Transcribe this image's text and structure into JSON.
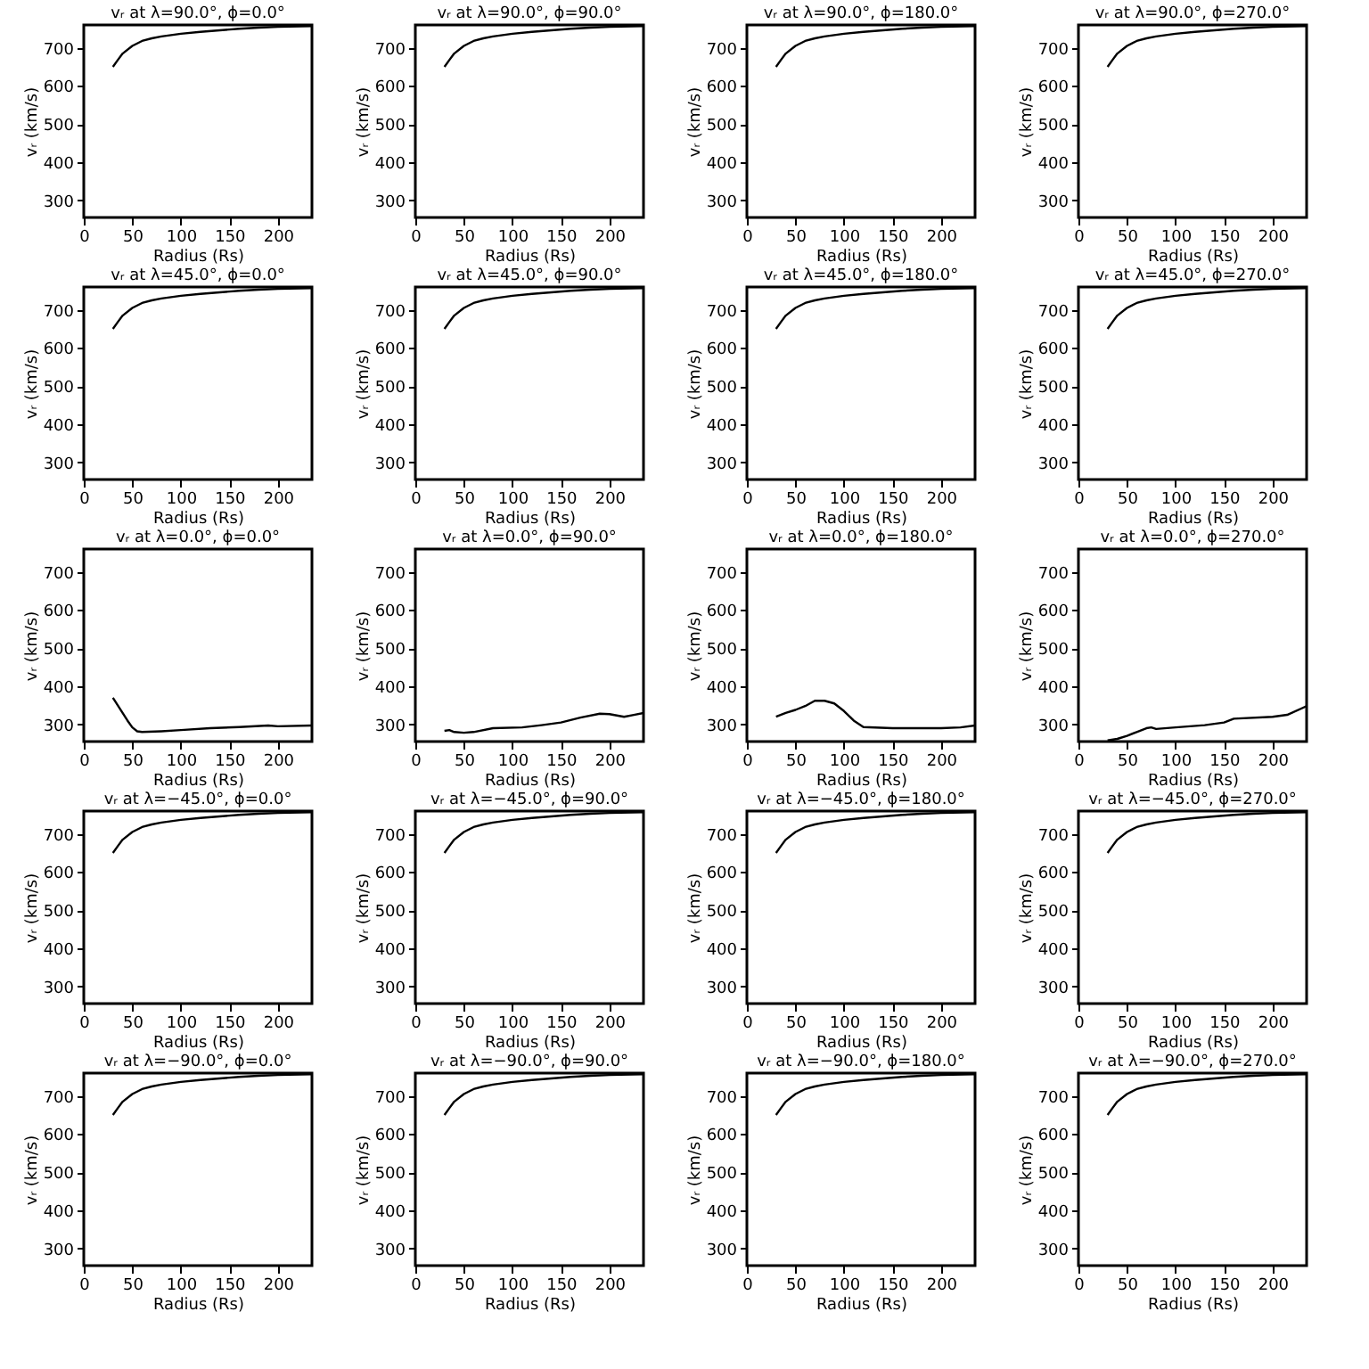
{
  "chart_data": [
    {
      "type": "line",
      "title": "vᵣ at λ=90.0°, ϕ=0.0°",
      "xlabel": "Radius (Rs)",
      "ylabel": "vᵣ (km/s)",
      "x": [
        30,
        35,
        40,
        50,
        60,
        70,
        80,
        100,
        120,
        140,
        160,
        180,
        200,
        235
      ],
      "values": [
        650,
        668,
        685,
        705,
        718,
        725,
        730,
        737,
        742,
        746,
        750,
        753,
        755,
        757
      ],
      "color": "#000000",
      "xlim": [
        0,
        235
      ],
      "ylim": [
        255,
        760
      ],
      "xticks": [
        0,
        50,
        100,
        150,
        200
      ],
      "yticks": [
        300,
        400,
        500,
        600,
        700
      ],
      "grid": false
    },
    {
      "type": "line",
      "title": "vᵣ at λ=90.0°, ϕ=90.0°",
      "xlabel": "Radius (Rs)",
      "ylabel": "vᵣ (km/s)",
      "x": [
        30,
        35,
        40,
        50,
        60,
        70,
        80,
        100,
        120,
        140,
        160,
        180,
        200,
        235
      ],
      "values": [
        650,
        668,
        685,
        705,
        718,
        725,
        730,
        737,
        742,
        746,
        750,
        753,
        755,
        757
      ],
      "color": "#000000",
      "xlim": [
        0,
        235
      ],
      "ylim": [
        255,
        760
      ],
      "xticks": [
        0,
        50,
        100,
        150,
        200
      ],
      "yticks": [
        300,
        400,
        500,
        600,
        700
      ],
      "grid": false
    },
    {
      "type": "line",
      "title": "vᵣ at λ=90.0°, ϕ=180.0°",
      "xlabel": "Radius (Rs)",
      "ylabel": "vᵣ (km/s)",
      "x": [
        30,
        35,
        40,
        50,
        60,
        70,
        80,
        100,
        120,
        140,
        160,
        180,
        200,
        235
      ],
      "values": [
        650,
        668,
        685,
        705,
        718,
        725,
        730,
        737,
        742,
        746,
        750,
        753,
        755,
        757
      ],
      "color": "#000000",
      "xlim": [
        0,
        235
      ],
      "ylim": [
        255,
        760
      ],
      "xticks": [
        0,
        50,
        100,
        150,
        200
      ],
      "yticks": [
        300,
        400,
        500,
        600,
        700
      ],
      "grid": false
    },
    {
      "type": "line",
      "title": "vᵣ at λ=90.0°, ϕ=270.0°",
      "xlabel": "Radius (Rs)",
      "ylabel": "vᵣ (km/s)",
      "x": [
        30,
        35,
        40,
        50,
        60,
        70,
        80,
        100,
        120,
        140,
        160,
        180,
        200,
        235
      ],
      "values": [
        650,
        668,
        685,
        705,
        718,
        725,
        730,
        737,
        742,
        746,
        750,
        753,
        755,
        757
      ],
      "color": "#000000",
      "xlim": [
        0,
        235
      ],
      "ylim": [
        255,
        760
      ],
      "xticks": [
        0,
        50,
        100,
        150,
        200
      ],
      "yticks": [
        300,
        400,
        500,
        600,
        700
      ],
      "grid": false
    },
    {
      "type": "line",
      "title": "vᵣ at λ=45.0°, ϕ=0.0°",
      "xlabel": "Radius (Rs)",
      "ylabel": "vᵣ (km/s)",
      "x": [
        30,
        35,
        40,
        50,
        60,
        70,
        80,
        100,
        120,
        140,
        160,
        180,
        200,
        235
      ],
      "values": [
        650,
        668,
        685,
        705,
        718,
        725,
        730,
        737,
        742,
        746,
        750,
        753,
        755,
        757
      ],
      "color": "#000000",
      "xlim": [
        0,
        235
      ],
      "ylim": [
        255,
        760
      ],
      "xticks": [
        0,
        50,
        100,
        150,
        200
      ],
      "yticks": [
        300,
        400,
        500,
        600,
        700
      ],
      "grid": false
    },
    {
      "type": "line",
      "title": "vᵣ at λ=45.0°, ϕ=90.0°",
      "xlabel": "Radius (Rs)",
      "ylabel": "vᵣ (km/s)",
      "x": [
        30,
        35,
        40,
        50,
        60,
        70,
        80,
        100,
        120,
        140,
        160,
        180,
        200,
        235
      ],
      "values": [
        650,
        668,
        685,
        705,
        718,
        725,
        730,
        737,
        742,
        746,
        750,
        753,
        755,
        757
      ],
      "color": "#000000",
      "xlim": [
        0,
        235
      ],
      "ylim": [
        255,
        760
      ],
      "xticks": [
        0,
        50,
        100,
        150,
        200
      ],
      "yticks": [
        300,
        400,
        500,
        600,
        700
      ],
      "grid": false
    },
    {
      "type": "line",
      "title": "vᵣ at λ=45.0°, ϕ=180.0°",
      "xlabel": "Radius (Rs)",
      "ylabel": "vᵣ (km/s)",
      "x": [
        30,
        35,
        40,
        50,
        60,
        70,
        80,
        100,
        120,
        140,
        160,
        180,
        200,
        235
      ],
      "values": [
        650,
        668,
        685,
        705,
        718,
        725,
        730,
        737,
        742,
        746,
        750,
        753,
        755,
        757
      ],
      "color": "#000000",
      "xlim": [
        0,
        235
      ],
      "ylim": [
        255,
        760
      ],
      "xticks": [
        0,
        50,
        100,
        150,
        200
      ],
      "yticks": [
        300,
        400,
        500,
        600,
        700
      ],
      "grid": false
    },
    {
      "type": "line",
      "title": "vᵣ at λ=45.0°, ϕ=270.0°",
      "xlabel": "Radius (Rs)",
      "ylabel": "vᵣ (km/s)",
      "x": [
        30,
        35,
        40,
        50,
        60,
        70,
        80,
        100,
        120,
        140,
        160,
        180,
        200,
        235
      ],
      "values": [
        650,
        668,
        685,
        705,
        718,
        725,
        730,
        737,
        742,
        746,
        750,
        753,
        755,
        757
      ],
      "color": "#000000",
      "xlim": [
        0,
        235
      ],
      "ylim": [
        255,
        760
      ],
      "xticks": [
        0,
        50,
        100,
        150,
        200
      ],
      "yticks": [
        300,
        400,
        500,
        600,
        700
      ],
      "grid": false
    },
    {
      "type": "line",
      "title": "vᵣ at λ=0.0°, ϕ=0.0°",
      "xlabel": "Radius (Rs)",
      "ylabel": "vᵣ (km/s)",
      "x": [
        30,
        35,
        40,
        45,
        50,
        55,
        60,
        80,
        100,
        130,
        160,
        190,
        200,
        235
      ],
      "values": [
        370,
        350,
        330,
        310,
        292,
        282,
        280,
        282,
        285,
        290,
        293,
        297,
        295,
        297
      ],
      "color": "#000000",
      "xlim": [
        0,
        235
      ],
      "ylim": [
        255,
        760
      ],
      "xticks": [
        0,
        50,
        100,
        150,
        200
      ],
      "yticks": [
        300,
        400,
        500,
        600,
        700
      ],
      "grid": false
    },
    {
      "type": "line",
      "title": "vᵣ at λ=0.0°, ϕ=90.0°",
      "xlabel": "Radius (Rs)",
      "ylabel": "vᵣ (km/s)",
      "x": [
        30,
        35,
        40,
        50,
        60,
        80,
        110,
        130,
        150,
        170,
        190,
        200,
        215,
        225,
        235
      ],
      "values": [
        283,
        285,
        280,
        278,
        280,
        290,
        292,
        298,
        305,
        318,
        328,
        327,
        320,
        325,
        330
      ],
      "color": "#000000",
      "xlim": [
        0,
        235
      ],
      "ylim": [
        255,
        760
      ],
      "xticks": [
        0,
        50,
        100,
        150,
        200
      ],
      "yticks": [
        300,
        400,
        500,
        600,
        700
      ],
      "grid": false
    },
    {
      "type": "line",
      "title": "vᵣ at λ=0.0°, ϕ=180.0°",
      "xlabel": "Radius (Rs)",
      "ylabel": "vᵣ (km/s)",
      "x": [
        30,
        40,
        50,
        60,
        70,
        80,
        90,
        100,
        110,
        120,
        150,
        200,
        220,
        235
      ],
      "values": [
        320,
        330,
        338,
        348,
        362,
        362,
        355,
        335,
        310,
        293,
        290,
        290,
        292,
        297
      ],
      "color": "#000000",
      "xlim": [
        0,
        235
      ],
      "ylim": [
        255,
        760
      ],
      "xticks": [
        0,
        50,
        100,
        150,
        200
      ],
      "yticks": [
        300,
        400,
        500,
        600,
        700
      ],
      "grid": false
    },
    {
      "type": "line",
      "title": "vᵣ at λ=0.0°, ϕ=270.0°",
      "xlabel": "Radius (Rs)",
      "ylabel": "vᵣ (km/s)",
      "x": [
        30,
        40,
        50,
        60,
        70,
        75,
        80,
        100,
        130,
        150,
        160,
        200,
        215,
        235
      ],
      "values": [
        258,
        262,
        270,
        280,
        290,
        292,
        288,
        292,
        298,
        305,
        315,
        320,
        325,
        348
      ],
      "color": "#000000",
      "xlim": [
        0,
        235
      ],
      "ylim": [
        255,
        760
      ],
      "xticks": [
        0,
        50,
        100,
        150,
        200
      ],
      "yticks": [
        300,
        400,
        500,
        600,
        700
      ],
      "grid": false
    },
    {
      "type": "line",
      "title": "vᵣ at λ=−45.0°, ϕ=0.0°",
      "xlabel": "Radius (Rs)",
      "ylabel": "vᵣ (km/s)",
      "x": [
        30,
        35,
        40,
        50,
        60,
        70,
        80,
        100,
        120,
        140,
        160,
        180,
        200,
        235
      ],
      "values": [
        650,
        668,
        685,
        705,
        718,
        725,
        730,
        737,
        742,
        746,
        750,
        753,
        755,
        757
      ],
      "color": "#000000",
      "xlim": [
        0,
        235
      ],
      "ylim": [
        255,
        760
      ],
      "xticks": [
        0,
        50,
        100,
        150,
        200
      ],
      "yticks": [
        300,
        400,
        500,
        600,
        700
      ],
      "grid": false
    },
    {
      "type": "line",
      "title": "vᵣ at λ=−45.0°, ϕ=90.0°",
      "xlabel": "Radius (Rs)",
      "ylabel": "vᵣ (km/s)",
      "x": [
        30,
        35,
        40,
        50,
        60,
        70,
        80,
        100,
        120,
        140,
        160,
        180,
        200,
        235
      ],
      "values": [
        650,
        668,
        685,
        705,
        718,
        725,
        730,
        737,
        742,
        746,
        750,
        753,
        755,
        757
      ],
      "color": "#000000",
      "xlim": [
        0,
        235
      ],
      "ylim": [
        255,
        760
      ],
      "xticks": [
        0,
        50,
        100,
        150,
        200
      ],
      "yticks": [
        300,
        400,
        500,
        600,
        700
      ],
      "grid": false
    },
    {
      "type": "line",
      "title": "vᵣ at λ=−45.0°, ϕ=180.0°",
      "xlabel": "Radius (Rs)",
      "ylabel": "vᵣ (km/s)",
      "x": [
        30,
        35,
        40,
        50,
        60,
        70,
        80,
        100,
        120,
        140,
        160,
        180,
        200,
        235
      ],
      "values": [
        650,
        668,
        685,
        705,
        718,
        725,
        730,
        737,
        742,
        746,
        750,
        753,
        755,
        757
      ],
      "color": "#000000",
      "xlim": [
        0,
        235
      ],
      "ylim": [
        255,
        760
      ],
      "xticks": [
        0,
        50,
        100,
        150,
        200
      ],
      "yticks": [
        300,
        400,
        500,
        600,
        700
      ],
      "grid": false
    },
    {
      "type": "line",
      "title": "vᵣ at λ=−45.0°, ϕ=270.0°",
      "xlabel": "Radius (Rs)",
      "ylabel": "vᵣ (km/s)",
      "x": [
        30,
        35,
        40,
        50,
        60,
        70,
        80,
        100,
        120,
        140,
        160,
        180,
        200,
        235
      ],
      "values": [
        650,
        668,
        685,
        705,
        718,
        725,
        730,
        737,
        742,
        746,
        750,
        753,
        755,
        757
      ],
      "color": "#000000",
      "xlim": [
        0,
        235
      ],
      "ylim": [
        255,
        760
      ],
      "xticks": [
        0,
        50,
        100,
        150,
        200
      ],
      "yticks": [
        300,
        400,
        500,
        600,
        700
      ],
      "grid": false
    },
    {
      "type": "line",
      "title": "vᵣ at λ=−90.0°, ϕ=0.0°",
      "xlabel": "Radius (Rs)",
      "ylabel": "vᵣ (km/s)",
      "x": [
        30,
        35,
        40,
        50,
        60,
        70,
        80,
        100,
        120,
        140,
        160,
        180,
        200,
        235
      ],
      "values": [
        650,
        668,
        685,
        705,
        718,
        725,
        730,
        737,
        742,
        746,
        750,
        753,
        755,
        757
      ],
      "color": "#000000",
      "xlim": [
        0,
        235
      ],
      "ylim": [
        255,
        760
      ],
      "xticks": [
        0,
        50,
        100,
        150,
        200
      ],
      "yticks": [
        300,
        400,
        500,
        600,
        700
      ],
      "grid": false
    },
    {
      "type": "line",
      "title": "vᵣ at λ=−90.0°, ϕ=90.0°",
      "xlabel": "Radius (Rs)",
      "ylabel": "vᵣ (km/s)",
      "x": [
        30,
        35,
        40,
        50,
        60,
        70,
        80,
        100,
        120,
        140,
        160,
        180,
        200,
        235
      ],
      "values": [
        650,
        668,
        685,
        705,
        718,
        725,
        730,
        737,
        742,
        746,
        750,
        753,
        755,
        757
      ],
      "color": "#000000",
      "xlim": [
        0,
        235
      ],
      "ylim": [
        255,
        760
      ],
      "xticks": [
        0,
        50,
        100,
        150,
        200
      ],
      "yticks": [
        300,
        400,
        500,
        600,
        700
      ],
      "grid": false
    },
    {
      "type": "line",
      "title": "vᵣ at λ=−90.0°, ϕ=180.0°",
      "xlabel": "Radius (Rs)",
      "ylabel": "vᵣ (km/s)",
      "x": [
        30,
        35,
        40,
        50,
        60,
        70,
        80,
        100,
        120,
        140,
        160,
        180,
        200,
        235
      ],
      "values": [
        650,
        668,
        685,
        705,
        718,
        725,
        730,
        737,
        742,
        746,
        750,
        753,
        755,
        757
      ],
      "color": "#000000",
      "xlim": [
        0,
        235
      ],
      "ylim": [
        255,
        760
      ],
      "xticks": [
        0,
        50,
        100,
        150,
        200
      ],
      "yticks": [
        300,
        400,
        500,
        600,
        700
      ],
      "grid": false
    },
    {
      "type": "line",
      "title": "vᵣ at λ=−90.0°, ϕ=270.0°",
      "xlabel": "Radius (Rs)",
      "ylabel": "vᵣ (km/s)",
      "x": [
        30,
        35,
        40,
        50,
        60,
        70,
        80,
        100,
        120,
        140,
        160,
        180,
        200,
        235
      ],
      "values": [
        650,
        668,
        685,
        705,
        718,
        725,
        730,
        737,
        742,
        746,
        750,
        753,
        755,
        757
      ],
      "color": "#000000",
      "xlim": [
        0,
        235
      ],
      "ylim": [
        255,
        760
      ],
      "xticks": [
        0,
        50,
        100,
        150,
        200
      ],
      "yticks": [
        300,
        400,
        500,
        600,
        700
      ],
      "grid": false
    }
  ]
}
